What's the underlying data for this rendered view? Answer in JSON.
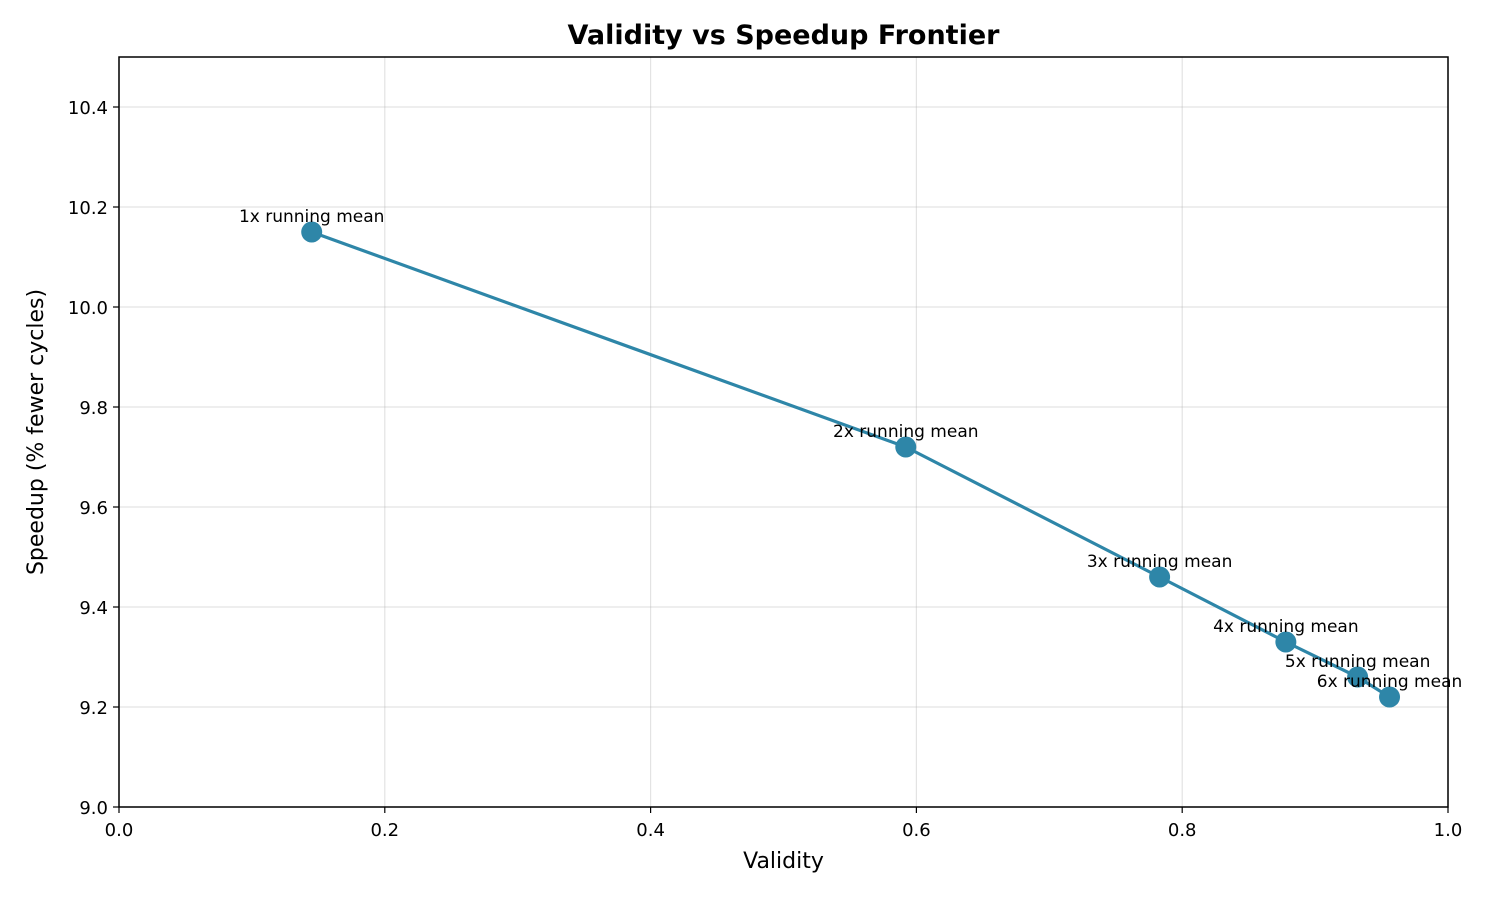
{
  "chart_data": {
    "type": "line",
    "title": "Validity vs Speedup Frontier",
    "xlabel": "Validity",
    "ylabel": "Speedup (% fewer cycles)",
    "xlim": [
      0.0,
      1.0
    ],
    "ylim": [
      9.0,
      10.5
    ],
    "xticks": [
      0.0,
      0.2,
      0.4,
      0.6,
      0.8,
      1.0
    ],
    "xtick_labels": [
      "0.0",
      "0.2",
      "0.4",
      "0.6",
      "0.8",
      "1.0"
    ],
    "yticks": [
      9.0,
      9.2,
      9.4,
      9.6,
      9.8,
      10.0,
      10.2,
      10.4
    ],
    "ytick_labels": [
      "9.0",
      "9.2",
      "9.4",
      "9.6",
      "9.8",
      "10.0",
      "10.2",
      "10.4"
    ],
    "grid": true,
    "series": [
      {
        "color": "#2e86a8",
        "points": [
          {
            "label": "1x running mean",
            "x": 0.145,
            "y": 10.15
          },
          {
            "label": "2x running mean",
            "x": 0.592,
            "y": 9.72
          },
          {
            "label": "3x running mean",
            "x": 0.783,
            "y": 9.46
          },
          {
            "label": "4x running mean",
            "x": 0.878,
            "y": 9.33
          },
          {
            "label": "5x running mean",
            "x": 0.932,
            "y": 9.26
          },
          {
            "label": "6x running mean",
            "x": 0.956,
            "y": 9.22
          }
        ]
      }
    ]
  }
}
